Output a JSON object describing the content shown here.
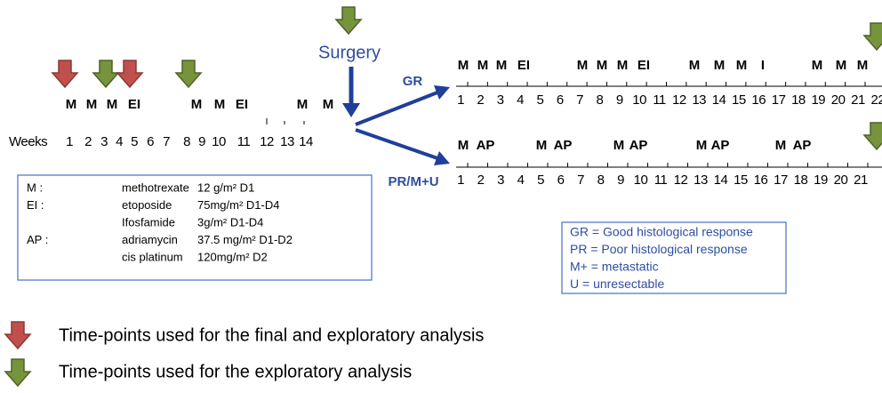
{
  "surgery": "Surgery",
  "preop": {
    "labels": [
      "M",
      "M",
      "M",
      "EI",
      "M",
      "M",
      "EI",
      "M",
      "M"
    ],
    "weeks_label": "Weeks",
    "weeks": [
      1,
      2,
      3,
      4,
      5,
      6,
      7,
      8,
      9,
      10,
      11,
      12,
      13,
      14
    ]
  },
  "gr": {
    "title": "GR",
    "labels": [
      "M",
      "M",
      "M",
      "EI",
      "M",
      "M",
      "M",
      "EI",
      "M",
      "M",
      "M",
      "I",
      "M",
      "M",
      "M"
    ],
    "weeks": [
      1,
      2,
      3,
      4,
      5,
      6,
      7,
      8,
      9,
      10,
      11,
      12,
      13,
      14,
      15,
      16,
      17,
      18,
      19,
      20,
      21,
      22
    ]
  },
  "pr": {
    "title": "PR/M+U",
    "labels": [
      "M",
      "AP",
      "M",
      "AP",
      "M",
      "AP",
      "M",
      "AP",
      "M",
      "AP"
    ],
    "weeks": [
      1,
      2,
      3,
      4,
      5,
      6,
      7,
      8,
      9,
      10,
      11,
      12,
      13,
      14,
      15,
      16,
      17,
      18,
      19,
      20,
      21
    ]
  },
  "regimen": [
    {
      "code": "M :",
      "drug": "methotrexate",
      "dose": "12 g/m² D1"
    },
    {
      "code": "EI :",
      "drug": "etoposide",
      "dose": "75mg/m² D1-D4"
    },
    {
      "drug": "Ifosfamide",
      "dose": "3g/m² D1-D4"
    },
    {
      "code": "AP :",
      "drug": "adriamycin",
      "dose": "37.5 mg/m² D1-D2"
    },
    {
      "drug": "cis platinum",
      "dose": "120mg/m² D2"
    }
  ],
  "abbreviations": [
    "GR = Good histological response",
    "PR = Poor histological response",
    "M+ = metastatic",
    "U   = unresectable"
  ],
  "legend": [
    "Time-points used for the final and exploratory analysis",
    "Time-points used for the exploratory analysis"
  ]
}
